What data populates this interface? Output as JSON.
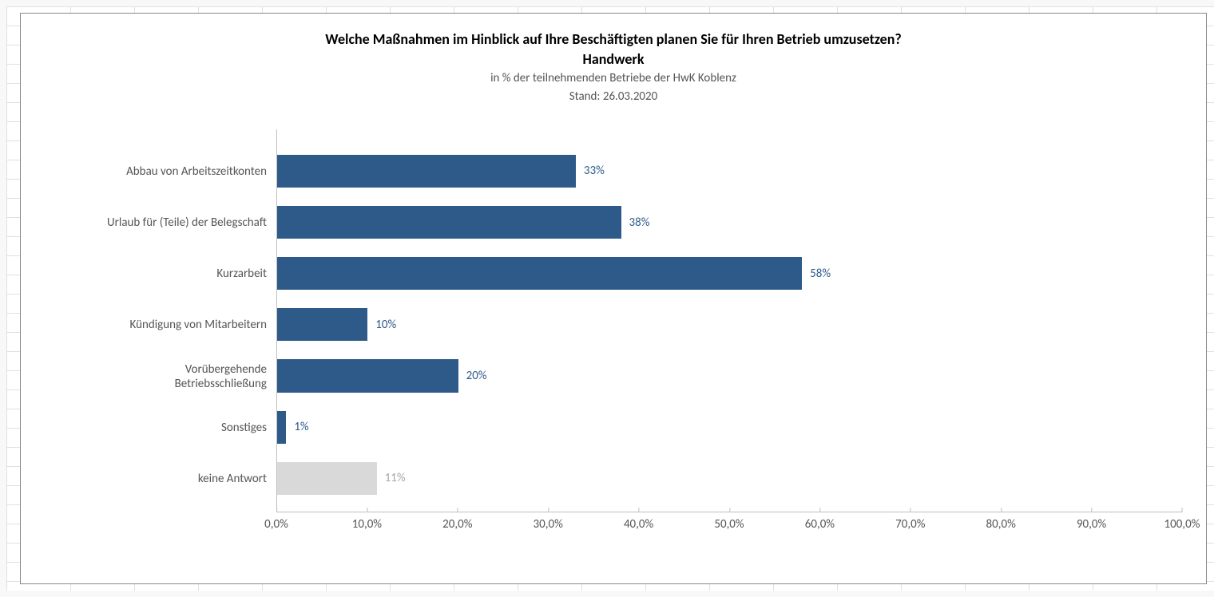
{
  "chart": {
    "type": "horizontal-bar",
    "title_line1": "Welche Maßnahmen im Hinblick auf Ihre Beschäftigten planen Sie für Ihren Betrieb umzusetzen?",
    "title_line2": "Handwerk",
    "subtitle_line1": "in % der teilnehmenden Betriebe der HwK Koblenz",
    "subtitle_line2": "Stand:  26.03.2020",
    "title_fontsize": 18,
    "title_fontweight": "bold",
    "title_color": "#000000",
    "subtitle_fontsize": 15,
    "subtitle_color": "#555555",
    "background_color": "#ffffff",
    "border_color": "#888888",
    "axis_color": "#bfbfbf",
    "tick_color": "#555555",
    "label_fontsize": 15,
    "label_color": "#555555",
    "xlim": [
      0,
      100
    ],
    "xtick_step": 10,
    "xticks": [
      "0,0%",
      "10,0%",
      "20,0%",
      "30,0%",
      "40,0%",
      "50,0%",
      "60,0%",
      "70,0%",
      "80,0%",
      "90,0%",
      "100,0%"
    ],
    "bar_height_ratio": 0.64,
    "primary_bar_color": "#2e5a8a",
    "secondary_bar_color": "#d9d9d9",
    "primary_label_color": "#2e5a8a",
    "secondary_label_color": "#a6a6a6",
    "categories": [
      {
        "label": "Abbau von Arbeitszeitkonten",
        "value": 33,
        "value_label": "33%",
        "color": "#2e5a8a",
        "label_color": "#2e5a8a"
      },
      {
        "label": "Urlaub für (Teile) der Belegschaft",
        "value": 38,
        "value_label": "38%",
        "color": "#2e5a8a",
        "label_color": "#2e5a8a"
      },
      {
        "label": "Kurzarbeit",
        "value": 58,
        "value_label": "58%",
        "color": "#2e5a8a",
        "label_color": "#2e5a8a"
      },
      {
        "label": "Kündigung von Mitarbeitern",
        "value": 10,
        "value_label": "10%",
        "color": "#2e5a8a",
        "label_color": "#2e5a8a"
      },
      {
        "label": "Vorübergehende\nBetriebsschließung",
        "value": 20,
        "value_label": "20%",
        "color": "#2e5a8a",
        "label_color": "#2e5a8a"
      },
      {
        "label": "Sonstiges",
        "value": 1,
        "value_label": "1%",
        "color": "#2e5a8a",
        "label_color": "#2e5a8a"
      },
      {
        "label": "keine Antwort",
        "value": 11,
        "value_label": "11%",
        "color": "#d9d9d9",
        "label_color": "#a6a6a6"
      }
    ]
  }
}
